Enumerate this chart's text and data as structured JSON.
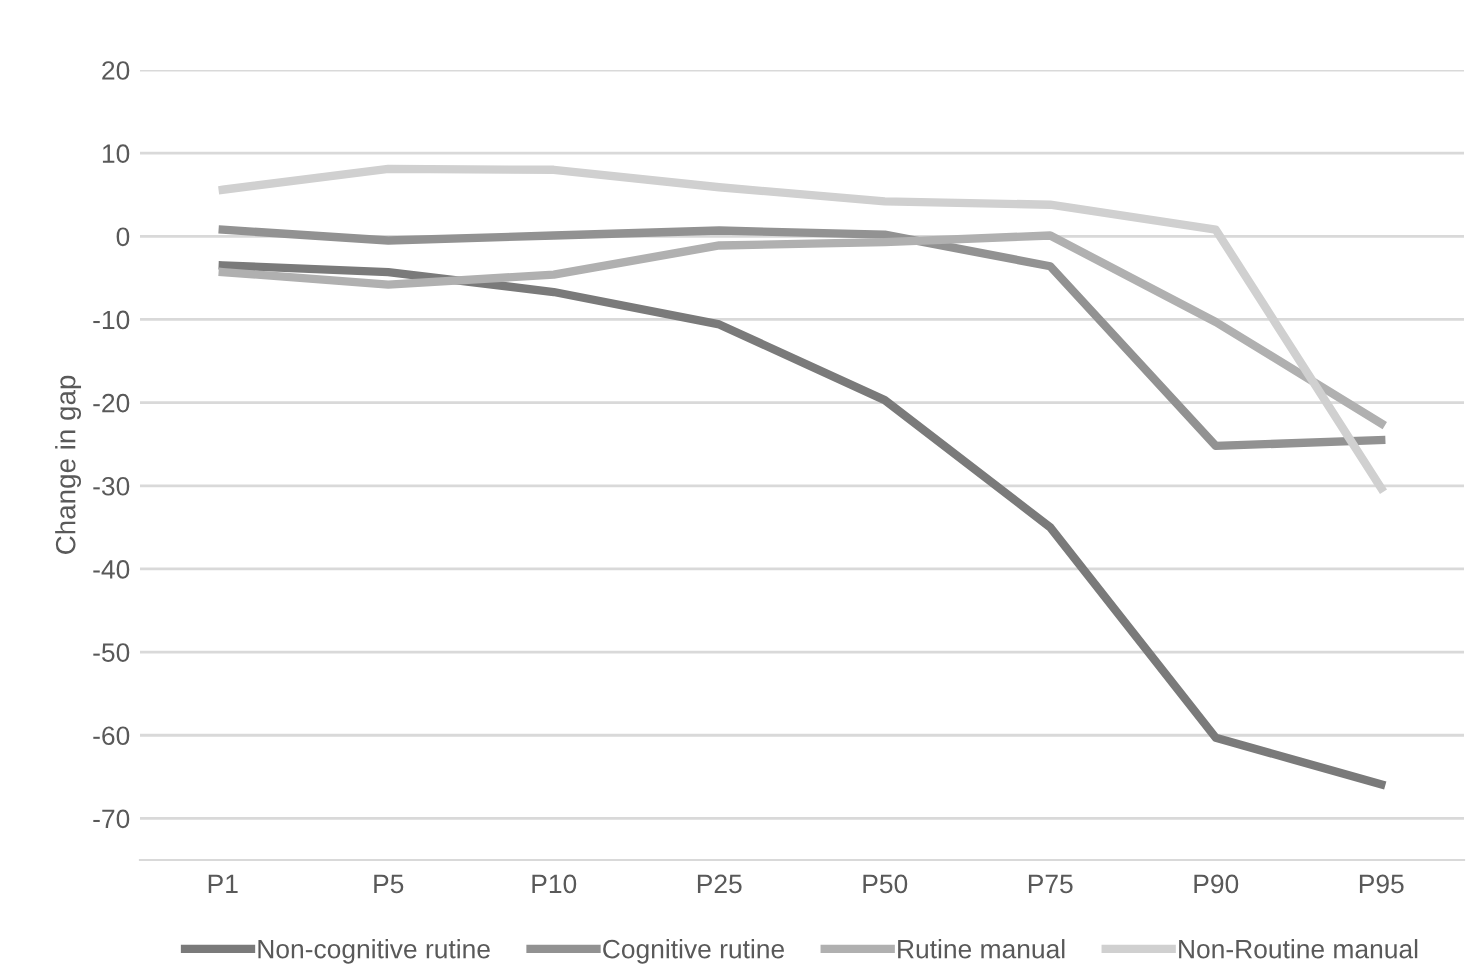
{
  "chart_data": {
    "type": "line",
    "ylabel": "Change in gap",
    "categories": [
      "P1",
      "P5",
      "P10",
      "P25",
      "P50",
      "P75",
      "P90",
      "P95"
    ],
    "series": [
      {
        "name": "Non-cognitive rutine",
        "color": "#7a7a7a",
        "values": [
          -3.5,
          -4.3,
          -6.7,
          -10.6,
          -19.7,
          -35,
          -60.3,
          -65.9
        ]
      },
      {
        "name": "Cognitive rutine",
        "color": "#929292",
        "values": [
          0.8,
          -0.5,
          0.1,
          0.7,
          0.2,
          -3.6,
          -25.2,
          -24.5
        ]
      },
      {
        "name": "Rutine manual",
        "color": "#b0b0b0",
        "values": [
          -4.3,
          -5.8,
          -4.6,
          -1.1,
          -0.7,
          0.1,
          -10.3,
          -22.5
        ]
      },
      {
        "name": "Non-Routine manual",
        "color": "#d0d0d0",
        "values": [
          5.6,
          8.1,
          8.0,
          5.9,
          4.2,
          3.8,
          0.8,
          -30.3
        ]
      }
    ],
    "ylim": [
      -75,
      20
    ],
    "yticks": [
      -70,
      -60,
      -50,
      -40,
      -30,
      -20,
      -10,
      0,
      10,
      20
    ],
    "grid": "y",
    "legend": "bottom",
    "marker": "none",
    "line_style": "solid"
  }
}
